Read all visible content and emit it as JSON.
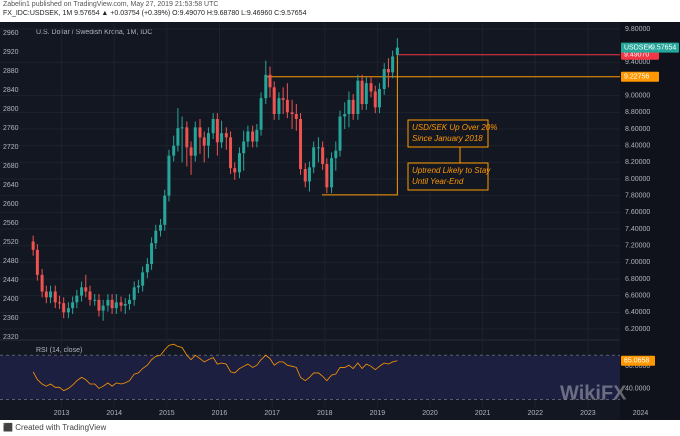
{
  "header": {
    "published": "Zabelin1 published on TradingView.com, May 27, 2019 21:53:58 UTC",
    "quote": "FX_IDC:USDSEK, 1M  9.57654 ▲ +0.03754 (+0.39%) O:9.49070 H:9.68780 L:9.46960 C:9.57654"
  },
  "footer": "Created with TradingView",
  "watermark": "WikiFX",
  "chart_data": {
    "type": "candlestick",
    "title": "U.S. Dollar / Swedish Krona, 1M, IDC",
    "x": [
      2012.46,
      2012.54,
      2012.63,
      2012.71,
      2012.79,
      2012.88,
      2012.96,
      2013.04,
      2013.13,
      2013.21,
      2013.29,
      2013.38,
      2013.46,
      2013.54,
      2013.63,
      2013.71,
      2013.79,
      2013.88,
      2013.96,
      2014.04,
      2014.13,
      2014.21,
      2014.29,
      2014.38,
      2014.46,
      2014.54,
      2014.63,
      2014.71,
      2014.79,
      2014.88,
      2014.96,
      2015.04,
      2015.13,
      2015.21,
      2015.29,
      2015.38,
      2015.46,
      2015.54,
      2015.63,
      2015.71,
      2015.79,
      2015.88,
      2015.96,
      2016.04,
      2016.13,
      2016.21,
      2016.29,
      2016.38,
      2016.46,
      2016.54,
      2016.63,
      2016.71,
      2016.79,
      2016.88,
      2016.96,
      2017.04,
      2017.13,
      2017.21,
      2017.29,
      2017.38,
      2017.46,
      2017.54,
      2017.63,
      2017.71,
      2017.79,
      2017.88,
      2017.96,
      2018.04,
      2018.13,
      2018.21,
      2018.29,
      2018.38,
      2018.46,
      2018.54,
      2018.63,
      2018.71,
      2018.79,
      2018.88,
      2018.96,
      2019.04,
      2019.13,
      2019.21,
      2019.29,
      2019.38
    ],
    "open": [
      7.25,
      7.15,
      6.85,
      6.65,
      6.58,
      6.65,
      6.52,
      6.51,
      6.4,
      6.45,
      6.52,
      6.6,
      6.7,
      6.65,
      6.55,
      6.55,
      6.42,
      6.48,
      6.55,
      6.45,
      6.52,
      6.48,
      6.5,
      6.55,
      6.7,
      6.72,
      6.88,
      6.98,
      7.23,
      7.38,
      7.45,
      7.8,
      8.28,
      8.4,
      8.61,
      8.62,
      8.38,
      8.28,
      8.62,
      8.5,
      8.4,
      8.55,
      8.72,
      8.44,
      8.55,
      8.5,
      8.13,
      8.08,
      8.31,
      8.45,
      8.57,
      8.45,
      8.59,
      8.97,
      9.25,
      9.1,
      8.78,
      8.97,
      8.95,
      8.8,
      8.78,
      8.72,
      8.12,
      7.97,
      8.14,
      8.38,
      8.38,
      8.18,
      7.9,
      8.25,
      8.34,
      8.75,
      8.78,
      8.95,
      8.78,
      9.18,
      8.9,
      9.15,
      9.05,
      8.86,
      9.08,
      9.32,
      9.28,
      9.49
    ],
    "high": [
      7.32,
      7.22,
      6.92,
      6.72,
      6.72,
      6.72,
      6.6,
      6.58,
      6.52,
      6.59,
      6.67,
      6.77,
      6.85,
      6.72,
      6.62,
      6.62,
      6.55,
      6.62,
      6.62,
      6.62,
      6.59,
      6.57,
      6.62,
      6.77,
      6.79,
      6.95,
      7.05,
      7.3,
      7.45,
      7.52,
      7.87,
      8.35,
      8.52,
      8.85,
      8.75,
      8.69,
      8.45,
      8.69,
      8.72,
      8.57,
      8.62,
      8.79,
      8.79,
      8.7,
      8.62,
      8.57,
      8.2,
      8.38,
      8.58,
      8.64,
      8.64,
      8.66,
      9.04,
      9.42,
      9.35,
      9.17,
      9.04,
      9.1,
      9.15,
      8.95,
      8.9,
      8.79,
      8.19,
      8.21,
      8.45,
      8.5,
      8.45,
      8.25,
      8.32,
      8.45,
      8.82,
      8.92,
      9.05,
      9.02,
      9.25,
      9.25,
      9.22,
      9.22,
      9.12,
      9.15,
      9.39,
      9.45,
      9.54,
      9.69
    ],
    "low": [
      7.08,
      6.78,
      6.58,
      6.51,
      6.51,
      6.45,
      6.44,
      6.33,
      6.33,
      6.38,
      6.45,
      6.53,
      6.58,
      6.48,
      6.48,
      6.35,
      6.3,
      6.41,
      6.38,
      6.38,
      6.41,
      6.38,
      6.43,
      6.48,
      6.63,
      6.65,
      6.81,
      6.91,
      7.16,
      7.31,
      7.38,
      7.73,
      8.21,
      8.33,
      8.2,
      8.15,
      8.05,
      8.21,
      8.3,
      8.2,
      8.25,
      8.48,
      8.28,
      8.37,
      8.35,
      8.06,
      7.99,
      8.01,
      8.1,
      8.38,
      8.38,
      8.38,
      8.52,
      8.9,
      8.98,
      8.71,
      8.71,
      8.78,
      8.73,
      8.6,
      8.58,
      8.05,
      7.9,
      7.85,
      8.07,
      8.2,
      8.11,
      7.83,
      7.83,
      8.1,
      8.27,
      8.6,
      8.62,
      8.71,
      8.71,
      8.83,
      8.83,
      8.98,
      8.79,
      8.79,
      9.01,
      9.1,
      9.21,
      9.47
    ],
    "close": [
      7.15,
      6.85,
      6.65,
      6.58,
      6.65,
      6.52,
      6.51,
      6.4,
      6.45,
      6.52,
      6.6,
      6.7,
      6.65,
      6.55,
      6.55,
      6.42,
      6.48,
      6.55,
      6.45,
      6.52,
      6.48,
      6.5,
      6.55,
      6.7,
      6.72,
      6.88,
      6.98,
      7.23,
      7.38,
      7.45,
      7.8,
      8.28,
      8.4,
      8.61,
      8.62,
      8.38,
      8.28,
      8.62,
      8.5,
      8.4,
      8.55,
      8.72,
      8.44,
      8.55,
      8.5,
      8.13,
      8.08,
      8.31,
      8.45,
      8.57,
      8.45,
      8.59,
      8.97,
      9.25,
      9.1,
      8.78,
      8.97,
      8.95,
      8.8,
      8.78,
      8.72,
      8.12,
      7.97,
      8.14,
      8.38,
      8.38,
      8.18,
      7.9,
      8.25,
      8.34,
      8.75,
      8.78,
      8.95,
      8.78,
      9.18,
      8.9,
      9.15,
      9.05,
      8.86,
      9.08,
      9.32,
      9.28,
      9.47,
      9.57654
    ],
    "up_color": "#26a69a",
    "down_color": "#ef5350",
    "xlim": [
      2012.4,
      2024.75
    ],
    "xticks": [
      2013,
      2014,
      2015,
      2016,
      2017,
      2018,
      2019,
      2020,
      2021,
      2022,
      2023,
      2024
    ],
    "ylim": [
      6.2,
      9.8
    ],
    "yticks": [
      {
        "value": 6.2,
        "label": "6.20000"
      },
      {
        "value": 6.4,
        "label": "6.40000"
      },
      {
        "value": 6.6,
        "label": "6.60000"
      },
      {
        "value": 6.8,
        "label": "6.80000"
      },
      {
        "value": 7.0,
        "label": "7.00000"
      },
      {
        "value": 7.2,
        "label": "7.20000"
      },
      {
        "value": 7.4,
        "label": "7.40000"
      },
      {
        "value": 7.6,
        "label": "7.60000"
      },
      {
        "value": 7.8,
        "label": "7.80000"
      },
      {
        "value": 8.0,
        "label": "8.00000"
      },
      {
        "value": 8.2,
        "label": "8.20000"
      },
      {
        "value": 8.4,
        "label": "8.40000"
      },
      {
        "value": 8.6,
        "label": "8.60000"
      },
      {
        "value": 8.8,
        "label": "8.80000"
      },
      {
        "value": 9.0,
        "label": "9.00000"
      },
      {
        "value": 9.4,
        "label": "9.40000"
      },
      {
        "value": 9.8,
        "label": "9.80000"
      }
    ],
    "y2lim": [
      2320,
      2960
    ],
    "y2ticks": [
      2320,
      2360,
      2400,
      2440,
      2480,
      2520,
      2560,
      2600,
      2640,
      2680,
      2720,
      2760,
      2800,
      2840,
      2880,
      2920,
      2960
    ],
    "grid": true,
    "symbol": "USDSEK",
    "levels": [
      {
        "value": 9.4907,
        "label": "9.49070",
        "color": "#f23645"
      },
      {
        "value": 9.22756,
        "color": "#ff9800"
      }
    ],
    "range_low": 7.81,
    "annotations": [
      {
        "lines": [
          "USD/SEK Up Over 20%",
          "Since January 2018"
        ]
      },
      {
        "lines": [
          "Uptrend Likely to Stay",
          "Until Year-End"
        ]
      }
    ],
    "annotation_color": "#ff9800",
    "rsi": {
      "title": "RSI (14, close)",
      "color": "#ff9800",
      "values": [
        55,
        48,
        44,
        42,
        44,
        41,
        41,
        38,
        40,
        43,
        47,
        50,
        48,
        44,
        44,
        40,
        42,
        45,
        42,
        45,
        44,
        45,
        47,
        53,
        54,
        58,
        61,
        66,
        69,
        70,
        75,
        79,
        80,
        78,
        77,
        70,
        66,
        70,
        67,
        64,
        66,
        68,
        62,
        63,
        62,
        55,
        54,
        58,
        60,
        62,
        59,
        61,
        66,
        70,
        67,
        61,
        64,
        64,
        61,
        60,
        59,
        50,
        47,
        50,
        54,
        54,
        51,
        47,
        52,
        53,
        59,
        59,
        61,
        58,
        63,
        58,
        62,
        60,
        57,
        60,
        63,
        62,
        64,
        65.0658
      ],
      "ylim": [
        25,
        82
      ],
      "yticks": [
        {
          "value": 40,
          "label": "40.0000"
        },
        {
          "value": 60,
          "label": "60.0000"
        }
      ],
      "bands": [
        30,
        70
      ]
    }
  }
}
